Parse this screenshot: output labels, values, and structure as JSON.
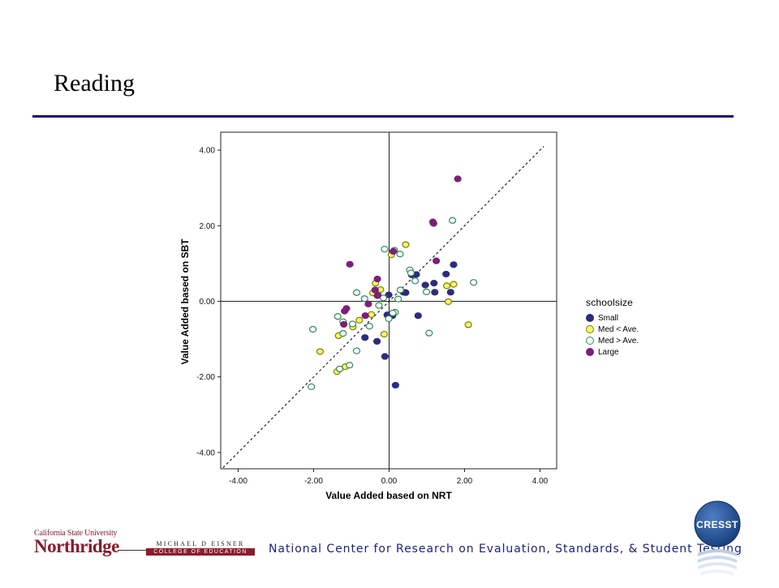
{
  "slide": {
    "title": "Reading"
  },
  "chart_data": {
    "type": "scatter",
    "xlabel": "Value Added based on NRT",
    "ylabel": "Value Added based on SBT",
    "xlim": [
      -4.4,
      4.4
    ],
    "ylim": [
      -4.4,
      4.1
    ],
    "x_ticks": [
      "-4.00",
      "-2.00",
      "0.00",
      "2.00",
      "4.00"
    ],
    "y_ticks": [
      "4.00",
      "2.00",
      "0.00",
      "-2.00",
      "-4.00"
    ],
    "reference_lines": [
      "x=0",
      "y=0",
      "y=x dashed"
    ],
    "legend": {
      "title": "schoolsize",
      "placement": "right"
    },
    "series": [
      {
        "name": "Small",
        "color": "#2c2c7e",
        "fill": "#2c2c7e",
        "points": [
          [
            1.71,
            0.97
          ],
          [
            1.51,
            0.72
          ],
          [
            1.63,
            0.24
          ],
          [
            1.19,
            0.48
          ],
          [
            1.21,
            0.24
          ],
          [
            0.96,
            0.43
          ],
          [
            0.72,
            0.71
          ],
          [
            0.6,
            0.7
          ],
          [
            0.38,
            0.24
          ],
          [
            0.44,
            0.23
          ],
          [
            -0.01,
            0.17
          ],
          [
            -0.05,
            -0.36
          ],
          [
            0.09,
            -0.38
          ],
          [
            0.77,
            -0.38
          ],
          [
            -0.32,
            -1.06
          ],
          [
            -0.11,
            -1.46
          ],
          [
            0.17,
            -2.22
          ],
          [
            -0.64,
            -0.96
          ],
          [
            -0.3,
            0.17
          ]
        ]
      },
      {
        "name": "Med < Ave.",
        "color": "#808000",
        "fill": "#f5f56e",
        "points": [
          [
            0.44,
            1.5
          ],
          [
            0.06,
            1.23
          ],
          [
            -0.36,
            0.48
          ],
          [
            -0.23,
            0.31
          ],
          [
            -0.43,
            0.22
          ],
          [
            1.53,
            0.41
          ],
          [
            1.71,
            0.45
          ],
          [
            1.57,
            -0.01
          ],
          [
            2.1,
            -0.62
          ],
          [
            -0.47,
            -0.35
          ],
          [
            -0.79,
            -0.5
          ],
          [
            -0.13,
            -0.87
          ],
          [
            -0.96,
            -0.68
          ],
          [
            -1.34,
            -0.91
          ],
          [
            -1.83,
            -1.33
          ],
          [
            -1.16,
            -1.73
          ],
          [
            -1.38,
            -1.86
          ]
        ]
      },
      {
        "name": "Med > Ave.",
        "color": "#2e8b57",
        "fill": "#ffffff",
        "points": [
          [
            1.68,
            2.14
          ],
          [
            -0.12,
            1.38
          ],
          [
            0.14,
            1.35
          ],
          [
            0.29,
            1.25
          ],
          [
            0.55,
            0.83
          ],
          [
            0.58,
            0.75
          ],
          [
            0.69,
            0.54
          ],
          [
            0.99,
            0.25
          ],
          [
            2.24,
            0.5
          ],
          [
            0.3,
            0.3
          ],
          [
            0.24,
            0.06
          ],
          [
            -0.86,
            0.23
          ],
          [
            -0.65,
            0.07
          ],
          [
            -0.15,
            0.09
          ],
          [
            -0.27,
            -0.11
          ],
          [
            -0.01,
            -0.46
          ],
          [
            0.16,
            -0.29
          ],
          [
            0.1,
            -0.31
          ],
          [
            1.06,
            -0.84
          ],
          [
            -1.36,
            -0.4
          ],
          [
            -1.22,
            -0.54
          ],
          [
            -0.97,
            -0.6
          ],
          [
            -0.52,
            -0.66
          ],
          [
            -1.22,
            -0.85
          ],
          [
            -0.86,
            -1.31
          ],
          [
            -2.02,
            -0.74
          ],
          [
            -1.05,
            -1.69
          ],
          [
            -1.31,
            -1.79
          ],
          [
            -2.06,
            -2.26
          ]
        ]
      },
      {
        "name": "Large",
        "color": "#7b1f7b",
        "fill": "#7b1f7b",
        "points": [
          [
            1.82,
            3.24
          ],
          [
            1.16,
            2.1
          ],
          [
            1.18,
            2.06
          ],
          [
            1.25,
            1.07
          ],
          [
            0.11,
            1.32
          ],
          [
            -1.04,
            0.98
          ],
          [
            -0.31,
            0.59
          ],
          [
            -0.37,
            0.3
          ],
          [
            -0.31,
            0.15
          ],
          [
            -0.55,
            -0.07
          ],
          [
            -1.13,
            -0.19
          ],
          [
            -1.18,
            -0.26
          ],
          [
            -0.63,
            -0.38
          ],
          [
            -1.2,
            -0.61
          ]
        ]
      }
    ]
  },
  "footer": {
    "csun_top": "California State University",
    "csun_name": "Northridge",
    "eisner_top": "MICHAEL D EISNER",
    "eisner_bottom": "COLLEGE OF EDUCATION",
    "center_text": "National Center for Research on Evaluation, Standards, & Student Testing",
    "cresst_label": "CRESST"
  }
}
